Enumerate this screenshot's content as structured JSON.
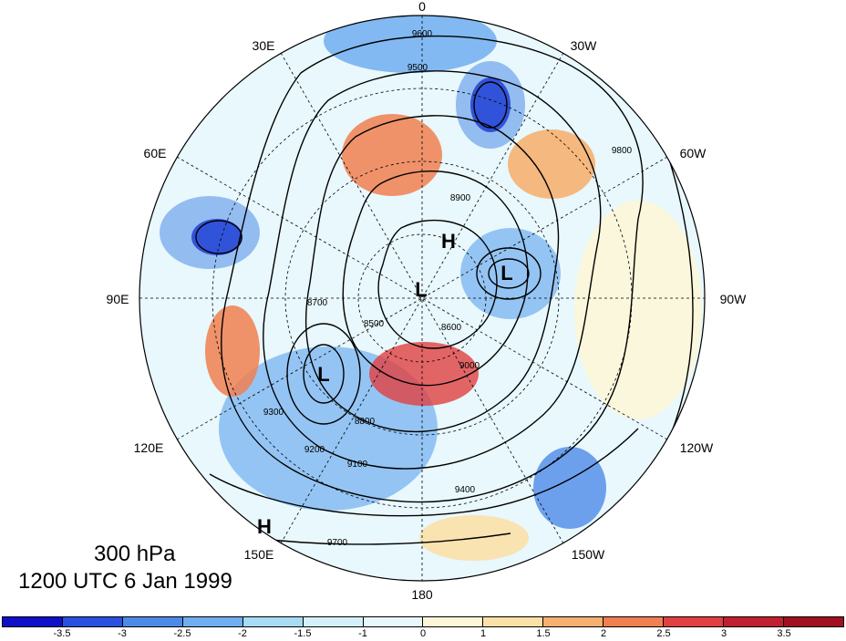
{
  "title_lines": {
    "level": "300 hPa",
    "time": "1200 UTC 6 Jan 1999"
  },
  "longitude_labels": [
    "0",
    "30W",
    "60W",
    "90W",
    "120W",
    "150W",
    "180",
    "150E",
    "120E",
    "90E",
    "60E",
    "30E"
  ],
  "pressure_centers": [
    {
      "label": "H",
      "name": "h-center-north"
    },
    {
      "label": "H",
      "name": "h-center-south"
    },
    {
      "label": "L",
      "name": "l-center-pole"
    },
    {
      "label": "L",
      "name": "l-center-east"
    },
    {
      "label": "L",
      "name": "l-center-west"
    }
  ],
  "contour_labels": [
    "9600",
    "9500",
    "9400",
    "9300",
    "9200",
    "9100",
    "9000",
    "8900",
    "8800",
    "8700",
    "8600",
    "8500",
    "9700",
    "9800"
  ],
  "colorbar": {
    "tick_labels": [
      "-3.5",
      "-3",
      "-2.5",
      "-2",
      "-1.5",
      "-1",
      "0",
      "1",
      "1.5",
      "2",
      "2.5",
      "3",
      "3.5"
    ],
    "colors": [
      "#1010c8",
      "#2a50e0",
      "#4c8ae8",
      "#70aef0",
      "#a6dcf4",
      "#d4f0fa",
      "#e8f8fc",
      "#fdf6d8",
      "#fbe0a8",
      "#f6b070",
      "#f08050",
      "#e04040",
      "#c02030",
      "#a01020"
    ]
  }
}
